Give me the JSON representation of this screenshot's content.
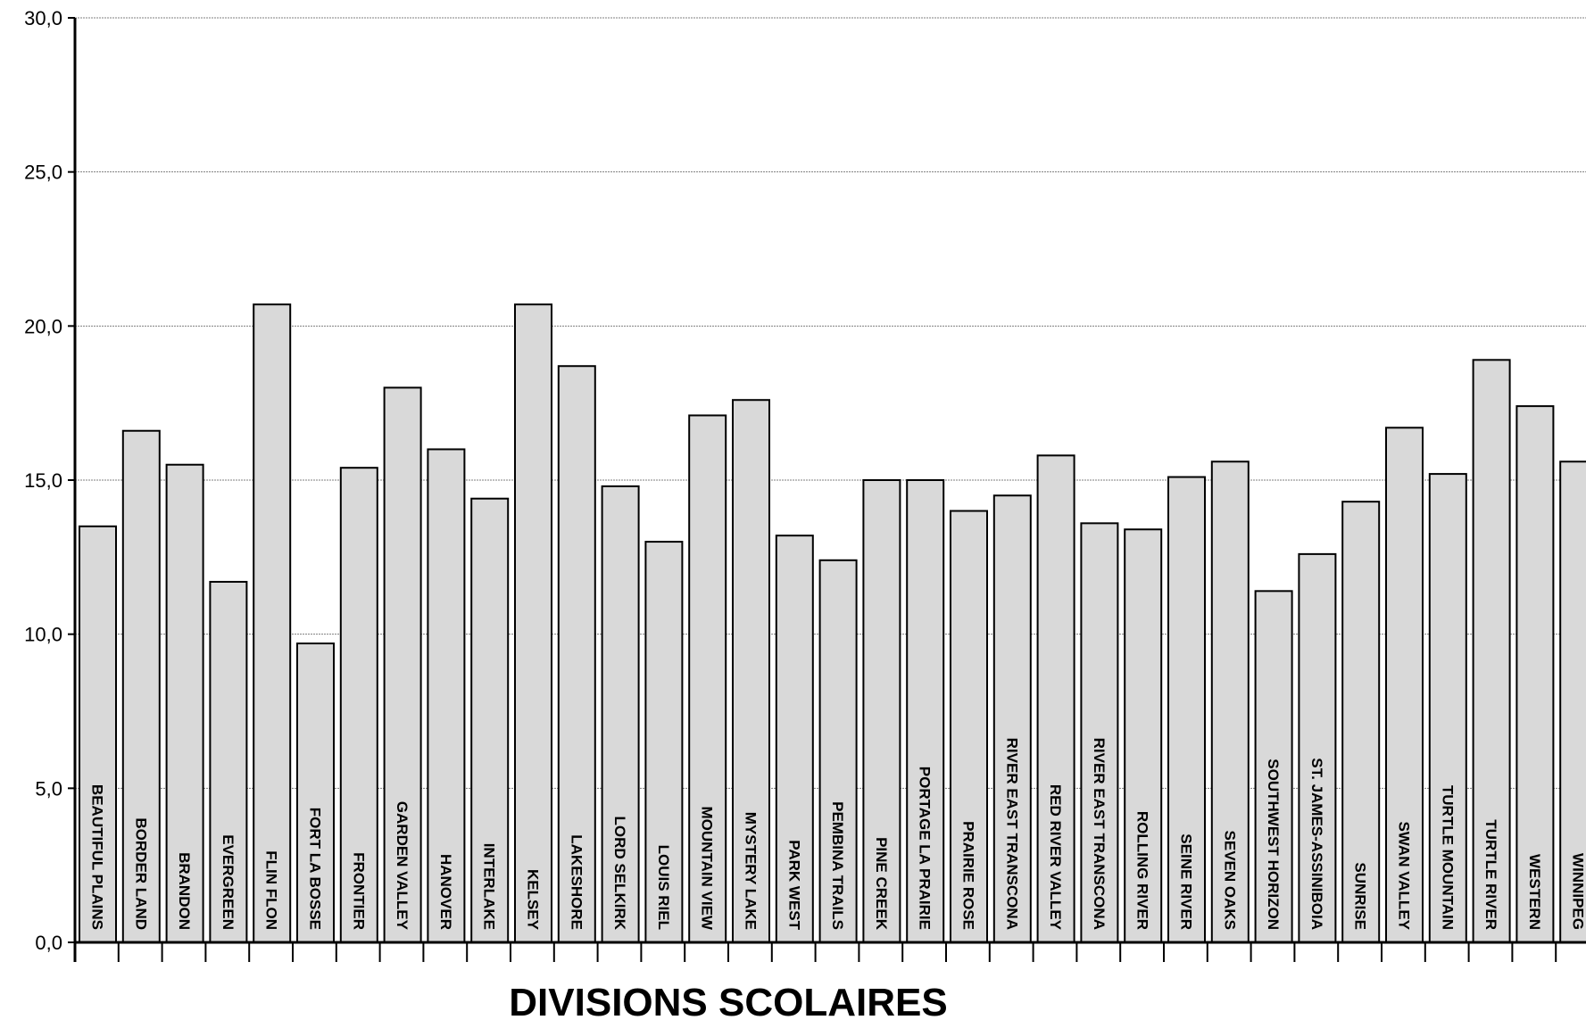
{
  "chart_data": {
    "type": "bar",
    "title": "",
    "xlabel": "DIVISIONS SCOLAIRES",
    "ylabel": "",
    "ylim": [
      0,
      30
    ],
    "yticks": [
      "0,0",
      "5,0",
      "10,0",
      "15,0",
      "20,0",
      "25,0",
      "30,0"
    ],
    "grid": true,
    "bar_color": "#d9d9d9",
    "edge_color": "#000000",
    "categories": [
      "BEAUTIFUL PLAINS",
      "BORDER LAND",
      "BRANDON",
      "EVERGREEN",
      "FLIN FLON",
      "FORT LA BOSSE",
      "FRONTIER",
      "GARDEN VALLEY",
      "HANOVER",
      "INTERLAKE",
      "KELSEY",
      "LAKESHORE",
      "LORD SELKIRK",
      "LOUIS RIEL",
      "MOUNTAIN VIEW",
      "MYSTERY LAKE",
      "PARK WEST",
      "PEMBINA TRAILS",
      "PINE CREEK",
      "PORTAGE LA PRAIRIE",
      "PRAIRIE ROSE",
      "RIVER EAST TRANSCONA",
      "RED RIVER VALLEY",
      "RIVER EAST TRANSCONA",
      "ROLLING RIVER",
      "SEINE RIVER",
      "SEVEN OAKS",
      "SOUTHWEST HORIZON",
      "ST. JAMES-ASSINIBOIA",
      "SUNRISE",
      "SWAN VALLEY",
      "TURTLE MOUNTAIN",
      "TURTLE RIVER",
      "WESTERN",
      "WINNIPEG"
    ],
    "values": [
      13.5,
      16.6,
      15.5,
      11.7,
      20.7,
      9.7,
      15.4,
      18.0,
      16.0,
      14.4,
      20.7,
      18.7,
      14.8,
      13.0,
      17.1,
      17.6,
      13.2,
      12.4,
      15.0,
      15.0,
      14.0,
      14.5,
      15.8,
      13.6,
      13.4,
      15.1,
      15.6,
      11.4,
      12.6,
      14.3,
      16.7,
      15.2,
      18.9,
      17.4,
      15.6
    ]
  }
}
